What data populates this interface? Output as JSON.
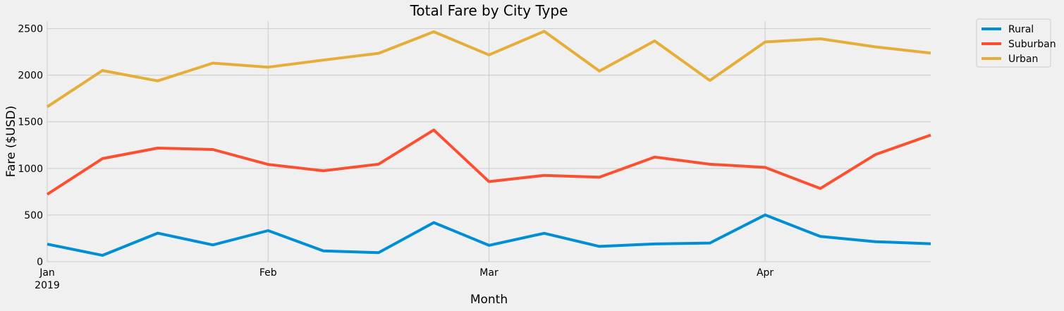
{
  "chart_data": {
    "type": "line",
    "title": "Total Fare by City Type",
    "xlabel": "Month",
    "ylabel": "Fare ($USD)",
    "x": [
      "2019-01-06",
      "2019-01-13",
      "2019-01-20",
      "2019-01-27",
      "2019-02-03",
      "2019-02-10",
      "2019-02-17",
      "2019-02-24",
      "2019-03-03",
      "2019-03-10",
      "2019-03-17",
      "2019-03-24",
      "2019-03-31",
      "2019-04-07",
      "2019-04-14",
      "2019-04-21",
      "2019-04-28"
    ],
    "xlim": [
      "2019-01-06",
      "2019-04-28"
    ],
    "x_ticks": [
      {
        "date": "2019-01-06",
        "label": "Jan",
        "sublabel": "2019"
      },
      {
        "date": "2019-02-03",
        "label": "Feb",
        "sublabel": ""
      },
      {
        "date": "2019-03-03",
        "label": "Mar",
        "sublabel": ""
      },
      {
        "date": "2019-04-07",
        "label": "Apr",
        "sublabel": ""
      }
    ],
    "ylim": [
      0,
      2580
    ],
    "y_ticks": [
      0,
      500,
      1000,
      1500,
      2000,
      2500
    ],
    "grid": true,
    "legend_position": "outside top-right",
    "series": [
      {
        "name": "Rural",
        "color": "#008fd5",
        "values": [
          187.92,
          67.65,
          306.0,
          179.69,
          333.08,
          115.8,
          95.82,
          419.06,
          175.14,
          303.94,
          163.39,
          189.76,
          199.42,
          501.24,
          269.79,
          214.14,
          191.85
        ]
      },
      {
        "name": "Suburban",
        "color": "#fc4f30",
        "values": [
          721.6,
          1105.13,
          1218.2,
          1203.28,
          1042.79,
          974.34,
          1045.5,
          1412.74,
          858.46,
          925.27,
          905.87,
          1122.2,
          1045.06,
          1010.73,
          784.82,
          1149.27,
          1357.75
        ]
      },
      {
        "name": "Urban",
        "color": "#e5ae38",
        "values": [
          1661.68,
          2050.43,
          1939.02,
          2129.51,
          2086.94,
          2162.64,
          2235.07,
          2466.29,
          2218.2,
          2470.93,
          2044.42,
          2368.37,
          1944.0,
          2356.7,
          2390.72,
          2303.8,
          2238.29
        ]
      }
    ]
  }
}
